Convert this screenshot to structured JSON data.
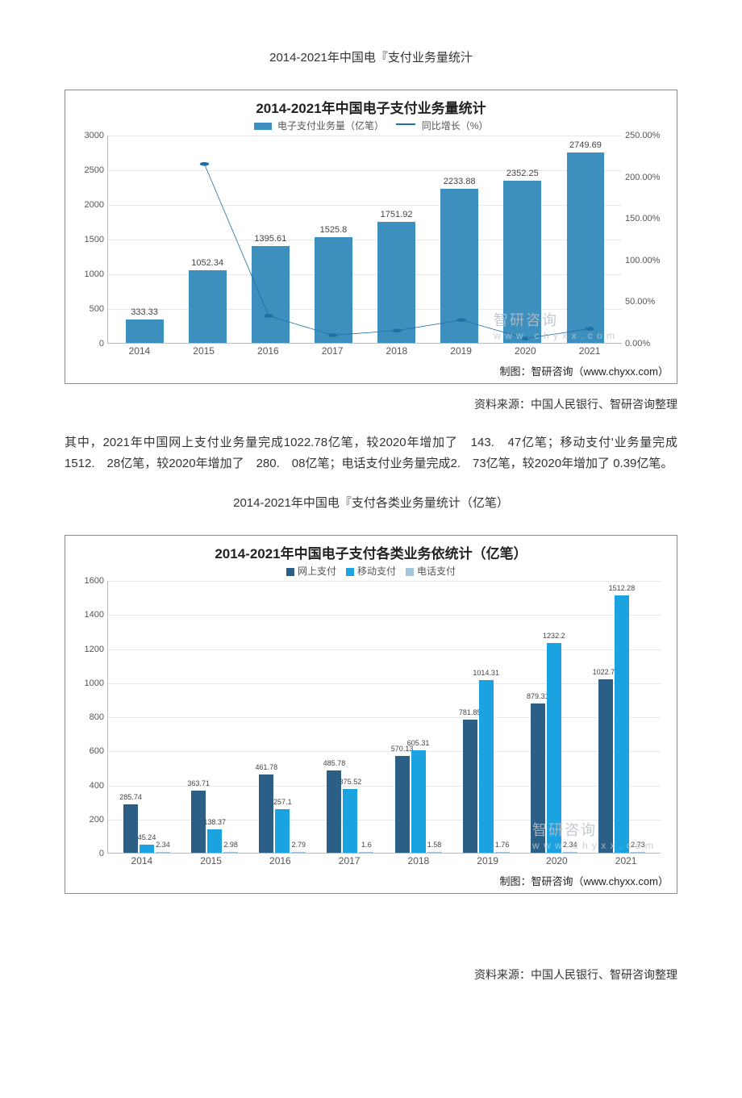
{
  "header1": "2014-2021年中国电『支付业务量统汁",
  "chart1": {
    "type": "bar+line",
    "title": "2014-2021年中国电子支付业务量统计",
    "legend_bar": "电子支付业务量（亿笔）",
    "legend_line": "同比增长（%）",
    "categories": [
      "2014",
      "2015",
      "2016",
      "2017",
      "2018",
      "2019",
      "2020",
      "2021"
    ],
    "bar_values": [
      333.33,
      1052.34,
      1395.61,
      1525.8,
      1751.92,
      2233.88,
      2352.25,
      2749.69
    ],
    "bar_color": "#3d8fbd",
    "line_values_pct": [
      null,
      215.7,
      32.62,
      9.33,
      14.82,
      27.51,
      5.3,
      16.9
    ],
    "line_color": "#1f6ea6",
    "y_left": {
      "min": 0,
      "max": 3000,
      "step": 500
    },
    "y_right": {
      "min": 0,
      "max": 250,
      "step": 50,
      "suffix": ".00%"
    },
    "right_zero_label": "0.00%",
    "grid_color": "#e8e8e8",
    "credit": "制图：智研咨询（www.chyxx.com）",
    "watermark_big": "智研咨询",
    "watermark_small": "w w w . c h y x x . c o m"
  },
  "source1": "资料来源：中国人民银行、智研咨询整理",
  "paragraph1": "其中，2021年中国网上支付业务量完成1022.78亿笔，较2020年增加了　143.　47亿笔；移动支付'业务量完成1512.　28亿笔，较2020年增加了　280.　08亿笔；电话支付业务量完成2.　73亿笔，较2020年增加了 0.39亿笔。",
  "header2": "2014-2021年中国电『支付各类业务量统计（亿笔）",
  "chart2": {
    "type": "grouped-bar",
    "title": "2014-2021年中国电子支付各类业务依统计（亿笔）",
    "series": [
      {
        "name": "网上支付",
        "color": "#2b5f86"
      },
      {
        "name": "移动支付",
        "color": "#1aa3e0"
      },
      {
        "name": "电话支付",
        "color": "#9fc6da"
      }
    ],
    "categories": [
      "2014",
      "2015",
      "2016",
      "2017",
      "2018",
      "2019",
      "2020",
      "2021"
    ],
    "data": [
      [
        285.74,
        45.24,
        2.34
      ],
      [
        363.71,
        138.37,
        2.98
      ],
      [
        461.78,
        257.1,
        2.79
      ],
      [
        485.78,
        375.52,
        1.6
      ],
      [
        570.13,
        605.31,
        1.58
      ],
      [
        781.85,
        1014.31,
        1.76
      ],
      [
        879.31,
        1232.2,
        2.34
      ],
      [
        1022.78,
        1512.28,
        2.73
      ]
    ],
    "data_labels": [
      [
        "285.74",
        "45.24",
        "2.34"
      ],
      [
        "363.71",
        "138.37",
        "2.98"
      ],
      [
        "461.78",
        "257.1",
        "2.79"
      ],
      [
        "485.78",
        "375.52",
        "1.6"
      ],
      [
        "570.13",
        "605.31",
        "1.58"
      ],
      [
        "781.85",
        "1014.31",
        "1.76"
      ],
      [
        "879.31",
        "1232.2",
        "2.34"
      ],
      [
        "1022.78",
        "1512.28",
        "2.73"
      ]
    ],
    "y": {
      "min": 0,
      "max": 1600,
      "step": 200
    },
    "grid_color": "#e8e8e8",
    "credit": "制图：智研咨询（www.chyxx.com）",
    "watermark_big": "智研咨询",
    "watermark_small": "w w w . c h y x x . c o m"
  },
  "source2": "资料来源：中国人民银行、智研咨询整理"
}
